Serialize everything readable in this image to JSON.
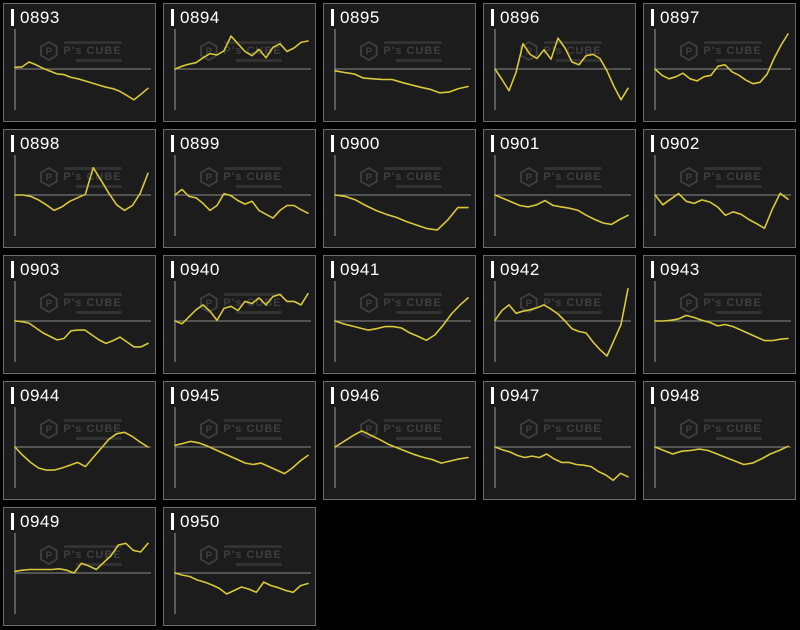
{
  "colors": {
    "page_bg": "#000000",
    "tile_bg": "#1c1c1c",
    "tile_border": "#6b6b6b",
    "label_text": "#ffffff",
    "line": "#d9c83a",
    "zero_line": "#8a8a8a",
    "axis_line": "#777777",
    "watermark": "#3f3f3f"
  },
  "watermark": {
    "title": "P's CUBE",
    "logo_letter": "P"
  },
  "chart_meta": {
    "type": "line",
    "note": "grid of sparkline panels, one per machine number; y values normalized to panel half-height around a zero baseline",
    "baseline": 0,
    "ylim": [
      -1,
      1
    ],
    "grid": false,
    "legend": false,
    "axis_labels": false
  },
  "chart_data": [
    {
      "title": "0893",
      "type": "line",
      "points": [
        0.05,
        0.06,
        0.2,
        0.12,
        0.02,
        -0.06,
        -0.14,
        -0.16,
        -0.24,
        -0.28,
        -0.34,
        -0.4,
        -0.46,
        -0.52,
        -0.56,
        -0.64,
        -0.76,
        -0.88,
        -0.72,
        -0.55
      ]
    },
    {
      "title": "0894",
      "type": "line",
      "points": [
        0.0,
        0.08,
        0.14,
        0.18,
        0.32,
        0.44,
        0.4,
        0.52,
        0.94,
        0.72,
        0.5,
        0.38,
        0.56,
        0.32,
        0.62,
        0.72,
        0.5,
        0.6,
        0.76,
        0.8
      ]
    },
    {
      "title": "0895",
      "type": "line",
      "points": [
        -0.05,
        -0.1,
        -0.14,
        -0.26,
        -0.28,
        -0.3,
        -0.3,
        -0.38,
        -0.45,
        -0.52,
        -0.58,
        -0.68,
        -0.66,
        -0.56,
        -0.5
      ]
    },
    {
      "title": "0896",
      "type": "line",
      "points": [
        0.0,
        -0.3,
        -0.62,
        -0.1,
        0.72,
        0.42,
        0.3,
        0.55,
        0.28,
        0.88,
        0.6,
        0.2,
        0.12,
        0.38,
        0.42,
        0.3,
        -0.05,
        -0.5,
        -0.88,
        -0.55
      ]
    },
    {
      "title": "0897",
      "type": "line",
      "points": [
        0.0,
        -0.18,
        -0.28,
        -0.22,
        -0.12,
        -0.28,
        -0.34,
        -0.22,
        -0.18,
        0.08,
        0.12,
        -0.08,
        -0.18,
        -0.32,
        -0.42,
        -0.38,
        -0.15,
        0.3,
        0.68,
        1.0
      ]
    },
    {
      "title": "0898",
      "type": "line",
      "points": [
        0.0,
        0.0,
        -0.04,
        -0.14,
        -0.28,
        -0.44,
        -0.34,
        -0.18,
        -0.08,
        0.02,
        0.78,
        0.42,
        0.05,
        -0.28,
        -0.44,
        -0.3,
        0.05,
        0.62
      ]
    },
    {
      "title": "0899",
      "type": "line",
      "points": [
        0.0,
        0.16,
        -0.04,
        -0.08,
        -0.24,
        -0.44,
        -0.3,
        0.04,
        -0.02,
        -0.16,
        -0.26,
        -0.18,
        -0.44,
        -0.55,
        -0.66,
        -0.44,
        -0.3,
        -0.3,
        -0.42,
        -0.52
      ]
    },
    {
      "title": "0900",
      "type": "line",
      "points": [
        0.0,
        -0.04,
        -0.14,
        -0.3,
        -0.44,
        -0.55,
        -0.64,
        -0.76,
        -0.86,
        -0.96,
        -1.0,
        -0.72,
        -0.36,
        -0.36
      ]
    },
    {
      "title": "0901",
      "type": "line",
      "points": [
        0.0,
        -0.1,
        -0.2,
        -0.3,
        -0.34,
        -0.28,
        -0.16,
        -0.3,
        -0.34,
        -0.38,
        -0.44,
        -0.58,
        -0.7,
        -0.8,
        -0.84,
        -0.7,
        -0.58
      ]
    },
    {
      "title": "0902",
      "type": "line",
      "points": [
        0.0,
        -0.28,
        -0.12,
        0.04,
        -0.18,
        -0.24,
        -0.14,
        -0.2,
        -0.34,
        -0.58,
        -0.48,
        -0.55,
        -0.7,
        -0.82,
        -0.95,
        -0.4,
        0.05,
        -0.12
      ]
    },
    {
      "title": "0903",
      "type": "line",
      "points": [
        0.0,
        -0.02,
        -0.06,
        -0.2,
        -0.34,
        -0.44,
        -0.54,
        -0.5,
        -0.28,
        -0.26,
        -0.26,
        -0.4,
        -0.54,
        -0.64,
        -0.56,
        -0.46,
        -0.6,
        -0.74,
        -0.74,
        -0.64
      ]
    },
    {
      "title": "0940",
      "type": "line",
      "points": [
        0.0,
        -0.08,
        0.12,
        0.32,
        0.46,
        0.28,
        0.02,
        0.36,
        0.42,
        0.3,
        0.56,
        0.5,
        0.66,
        0.46,
        0.7,
        0.76,
        0.56,
        0.56,
        0.46,
        0.78
      ]
    },
    {
      "title": "0941",
      "type": "line",
      "points": [
        0.0,
        -0.08,
        -0.14,
        -0.2,
        -0.26,
        -0.22,
        -0.16,
        -0.16,
        -0.2,
        -0.34,
        -0.44,
        -0.55,
        -0.4,
        -0.12,
        0.2,
        0.45,
        0.66
      ]
    },
    {
      "title": "0942",
      "type": "line",
      "points": [
        0.02,
        0.3,
        0.46,
        0.22,
        0.28,
        0.32,
        0.38,
        0.46,
        0.34,
        0.2,
        0.0,
        -0.22,
        -0.3,
        -0.34,
        -0.6,
        -0.82,
        -1.0,
        -0.55,
        -0.1,
        0.92
      ]
    },
    {
      "title": "0943",
      "type": "line",
      "points": [
        0.0,
        0.0,
        0.02,
        0.06,
        0.16,
        0.1,
        0.02,
        -0.04,
        -0.14,
        -0.1,
        -0.16,
        -0.26,
        -0.36,
        -0.46,
        -0.56,
        -0.56,
        -0.52,
        -0.5
      ]
    },
    {
      "title": "0944",
      "type": "line",
      "points": [
        0.0,
        -0.24,
        -0.44,
        -0.6,
        -0.66,
        -0.66,
        -0.6,
        -0.52,
        -0.44,
        -0.56,
        -0.3,
        -0.04,
        0.22,
        0.38,
        0.42,
        0.3,
        0.14,
        0.0
      ]
    },
    {
      "title": "0945",
      "type": "line",
      "points": [
        0.05,
        0.1,
        0.16,
        0.12,
        0.04,
        -0.06,
        -0.16,
        -0.26,
        -0.36,
        -0.46,
        -0.5,
        -0.46,
        -0.56,
        -0.66,
        -0.76,
        -0.6,
        -0.4,
        -0.24
      ]
    },
    {
      "title": "0946",
      "type": "line",
      "points": [
        0.0,
        0.16,
        0.32,
        0.46,
        0.34,
        0.22,
        0.08,
        -0.02,
        -0.12,
        -0.22,
        -0.3,
        -0.36,
        -0.46,
        -0.4,
        -0.34,
        -0.3
      ]
    },
    {
      "title": "0947",
      "type": "line",
      "points": [
        0.0,
        -0.08,
        -0.14,
        -0.24,
        -0.3,
        -0.26,
        -0.3,
        -0.2,
        -0.34,
        -0.44,
        -0.44,
        -0.5,
        -0.52,
        -0.56,
        -0.7,
        -0.8,
        -0.95,
        -0.75,
        -0.85
      ]
    },
    {
      "title": "0948",
      "type": "line",
      "points": [
        0.0,
        -0.1,
        -0.2,
        -0.12,
        -0.1,
        -0.06,
        -0.1,
        -0.2,
        -0.3,
        -0.4,
        -0.5,
        -0.46,
        -0.34,
        -0.2,
        -0.1,
        0.02
      ]
    },
    {
      "title": "0949",
      "type": "line",
      "points": [
        0.05,
        0.08,
        0.1,
        0.1,
        0.1,
        0.1,
        0.12,
        0.08,
        0.0,
        0.28,
        0.2,
        0.1,
        0.3,
        0.5,
        0.8,
        0.85,
        0.65,
        0.6,
        0.85
      ]
    },
    {
      "title": "0950",
      "type": "line",
      "points": [
        0.0,
        -0.06,
        -0.1,
        -0.2,
        -0.26,
        -0.34,
        -0.44,
        -0.6,
        -0.5,
        -0.4,
        -0.46,
        -0.55,
        -0.26,
        -0.36,
        -0.42,
        -0.5,
        -0.55,
        -0.36,
        -0.3
      ]
    }
  ]
}
